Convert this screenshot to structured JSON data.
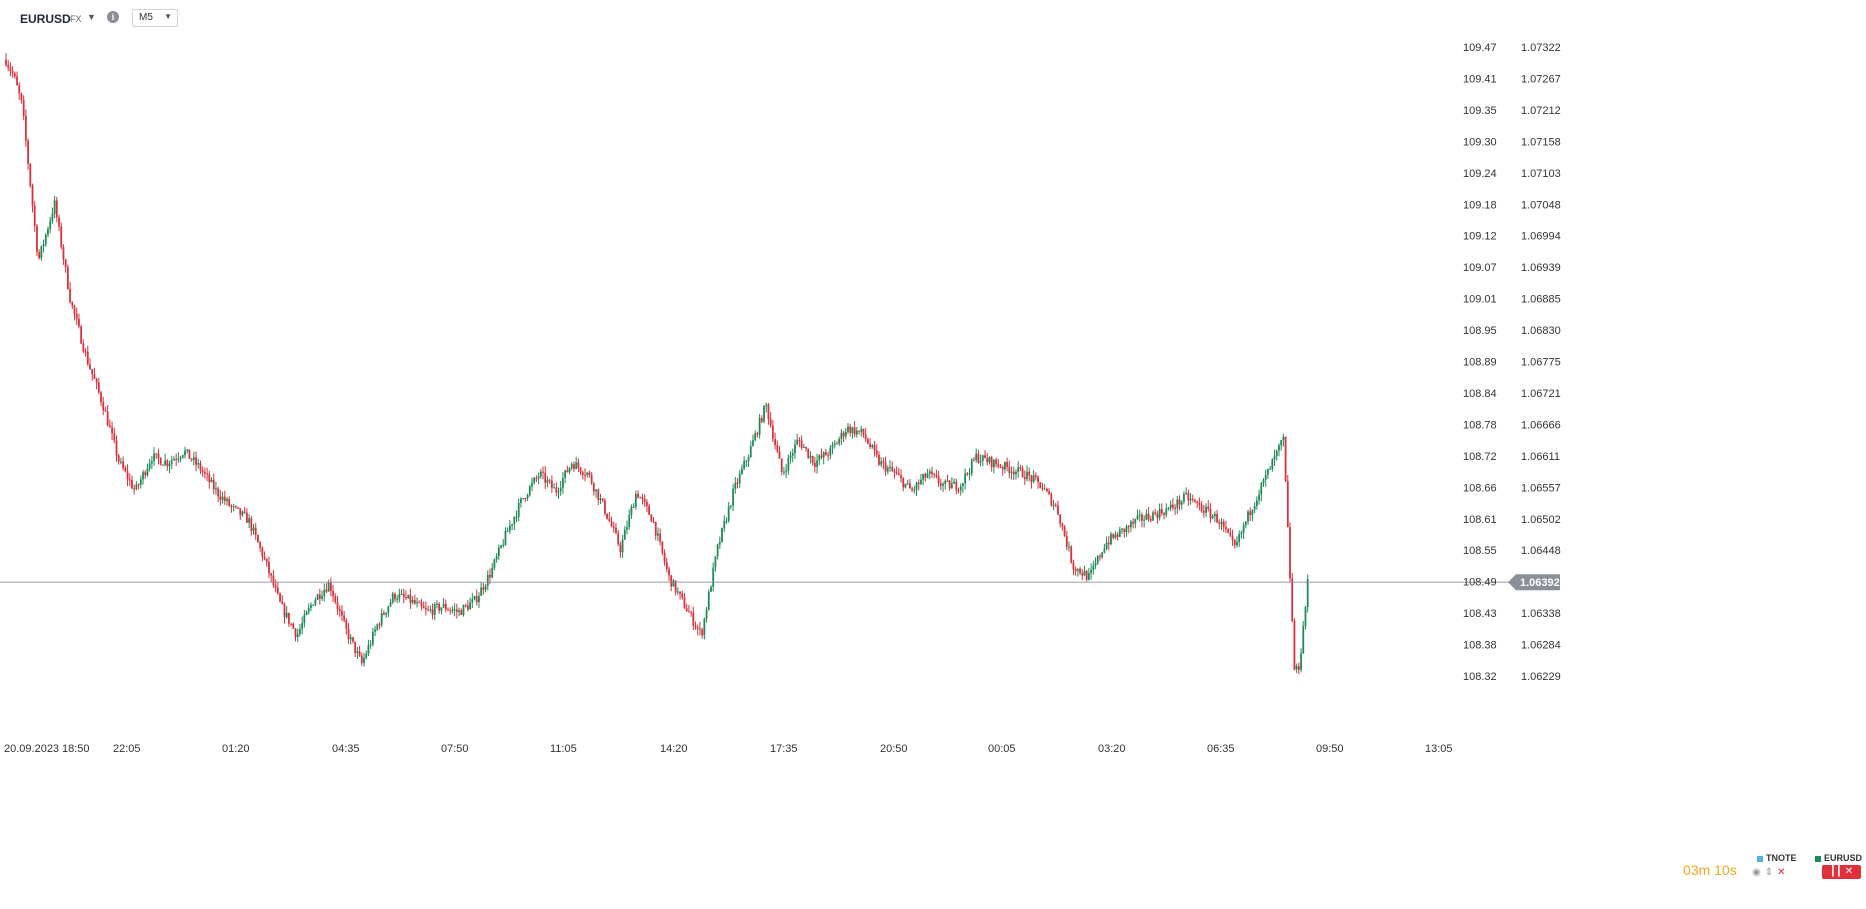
{
  "toolbar": {
    "symbol": "EURUSD",
    "symbol_type": "FX",
    "timeframe": "M5"
  },
  "chart_data": {
    "type": "candlestick",
    "series": [
      {
        "name": "EURUSD",
        "color": "#1e8a56",
        "down_color": "#d9303b"
      },
      {
        "name": "TNOTE",
        "color": "#4fb3e8"
      }
    ],
    "x_tick_labels": [
      "20.09.2023",
      "18:50",
      "22:05",
      "01:20",
      "04:35",
      "07:50",
      "11:05",
      "14:20",
      "17:35",
      "20:50",
      "00:05",
      "03:20",
      "06:35",
      "09:50",
      "13:05"
    ],
    "right_axis_labels": [
      "1.07322",
      "1.07267",
      "1.07212",
      "1.07158",
      "1.07103",
      "1.07048",
      "1.06994",
      "1.06939",
      "1.06885",
      "1.06830",
      "1.06775",
      "1.06721",
      "1.06666",
      "1.06611",
      "1.06557",
      "1.06502",
      "1.06448",
      "1.06392",
      "1.06338",
      "1.06284",
      "1.06229"
    ],
    "left_axis_labels": [
      "109.47",
      "109.41",
      "109.35",
      "109.30",
      "109.24",
      "109.18",
      "109.12",
      "109.07",
      "109.01",
      "108.95",
      "108.89",
      "108.84",
      "108.78",
      "108.72",
      "108.66",
      "108.61",
      "108.55",
      "108.49",
      "108.43",
      "108.38",
      "108.32"
    ],
    "right_axis_range": [
      1.06229,
      1.07322
    ],
    "last_price": "1.06392",
    "last_price_value": 1.06392,
    "up_color": "#1e8a56",
    "down_color": "#d9303b",
    "grid": false,
    "close_path": [
      [
        0,
        1.073
      ],
      [
        0.5,
        1.0727
      ],
      [
        1,
        1.0722
      ],
      [
        2,
        1.0695
      ],
      [
        3,
        1.0705
      ],
      [
        4,
        1.0688
      ],
      [
        5,
        1.0678
      ],
      [
        6,
        1.067
      ],
      [
        7,
        1.066
      ],
      [
        8,
        1.0655
      ],
      [
        9,
        1.0661
      ],
      [
        10,
        1.066
      ],
      [
        11,
        1.0662
      ],
      [
        12,
        1.0659
      ],
      [
        13,
        1.0655
      ],
      [
        14,
        1.0652
      ],
      [
        15,
        1.065
      ],
      [
        16,
        1.0643
      ],
      [
        17,
        1.0635
      ],
      [
        18,
        1.063
      ],
      [
        19,
        1.0636
      ],
      [
        20,
        1.0639
      ],
      [
        21,
        1.0631
      ],
      [
        22,
        1.0625
      ],
      [
        23,
        1.0632
      ],
      [
        24,
        1.0637
      ],
      [
        25,
        1.0636
      ],
      [
        26,
        1.0634
      ],
      [
        27,
        1.0635
      ],
      [
        28,
        1.0634
      ],
      [
        29,
        1.0636
      ],
      [
        30,
        1.0641
      ],
      [
        31,
        1.0648
      ],
      [
        32,
        1.0654
      ],
      [
        33,
        1.0658
      ],
      [
        34,
        1.0655
      ],
      [
        35,
        1.066
      ],
      [
        36,
        1.0658
      ],
      [
        37,
        1.0652
      ],
      [
        38,
        1.0645
      ],
      [
        39,
        1.0655
      ],
      [
        40,
        1.065
      ],
      [
        41,
        1.064
      ],
      [
        42,
        1.0635
      ],
      [
        43,
        1.063
      ],
      [
        44,
        1.0645
      ],
      [
        45,
        1.0655
      ],
      [
        46,
        1.0662
      ],
      [
        47,
        1.067
      ],
      [
        48,
        1.0658
      ],
      [
        49,
        1.0664
      ],
      [
        50,
        1.066
      ],
      [
        51,
        1.0662
      ],
      [
        52,
        1.0666
      ],
      [
        53,
        1.0665
      ],
      [
        54,
        1.066
      ],
      [
        55,
        1.0658
      ],
      [
        56,
        1.0655
      ],
      [
        57,
        1.0658
      ],
      [
        58,
        1.0656
      ],
      [
        59,
        1.0656
      ],
      [
        60,
        1.0661
      ],
      [
        61,
        1.066
      ],
      [
        62,
        1.0659
      ],
      [
        63,
        1.0658
      ],
      [
        64,
        1.0656
      ],
      [
        65,
        1.0652
      ],
      [
        66,
        1.0642
      ],
      [
        67,
        1.064
      ],
      [
        68,
        1.0646
      ],
      [
        69,
        1.0648
      ],
      [
        70,
        1.065
      ],
      [
        71,
        1.0651
      ],
      [
        72,
        1.0652
      ],
      [
        73,
        1.0654
      ],
      [
        74,
        1.0652
      ],
      [
        75,
        1.065
      ],
      [
        76,
        1.0645
      ],
      [
        77,
        1.0652
      ],
      [
        78,
        1.0658
      ],
      [
        79,
        1.0664
      ],
      [
        79.7,
        1.0623
      ],
      [
        80,
        1.0625
      ],
      [
        80.5,
        1.0639
      ]
    ]
  },
  "countdown": "03m 10s",
  "legend": [
    {
      "label": "TNOTE",
      "color": "#4fb3e8"
    },
    {
      "label": "EURUSD",
      "color": "#1e8a56"
    }
  ],
  "icons": {
    "info": "info-icon",
    "eye": "eye-icon",
    "arrows": "up-down-arrows-icon",
    "close": "close-icon",
    "candles": "candlestick-icon"
  }
}
